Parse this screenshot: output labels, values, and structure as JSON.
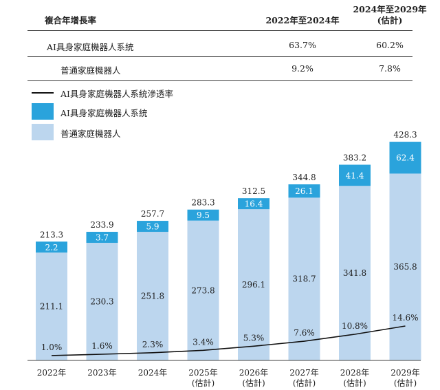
{
  "cagr_table": {
    "title": "複合年增長率",
    "col1": "2022年至2024年",
    "col2_line1": "2024年至2029年",
    "col2_line2": "(估計)",
    "rows": [
      {
        "label": "AI具身家庭機器人系統",
        "v1": "63.7%",
        "v2": "60.2%"
      },
      {
        "label": "普通家庭機器人",
        "v1": "9.2%",
        "v2": "7.8%"
      }
    ]
  },
  "legend": {
    "line": "AI具身家庭機器人系統滲透率",
    "top": "AI具身家庭機器人系統",
    "bottom": "普通家庭機器人"
  },
  "colors": {
    "top": "#2aa3dc",
    "bottom": "#bcd6ee",
    "line": "#111111",
    "axis": "#666666"
  },
  "chart_data": {
    "type": "bar",
    "stacked": true,
    "categories": [
      "2022年",
      "2023年",
      "2024年",
      "2025年(估計)",
      "2026年(估計)",
      "2027年(估計)",
      "2028年(估計)",
      "2029年(估計)"
    ],
    "x_labels": [
      [
        "2022年",
        ""
      ],
      [
        "2023年",
        ""
      ],
      [
        "2024年",
        ""
      ],
      [
        "2025年",
        "(估計)"
      ],
      [
        "2026年",
        "(估計)"
      ],
      [
        "2027年",
        "(估計)"
      ],
      [
        "2028年",
        "(估計)"
      ],
      [
        "2029年",
        "(估計)"
      ]
    ],
    "series": [
      {
        "name": "普通家庭機器人",
        "values": [
          211.1,
          230.3,
          251.8,
          273.8,
          296.1,
          318.7,
          341.8,
          365.8
        ]
      },
      {
        "name": "AI具身家庭機器人系統",
        "values": [
          2.2,
          3.7,
          5.9,
          9.5,
          16.4,
          26.1,
          41.4,
          62.4
        ]
      }
    ],
    "totals": [
      "213.3",
      "233.9",
      "257.7",
      "283.3",
      "312.5",
      "344.8",
      "383.2",
      "428.3"
    ],
    "bottom_labels": [
      "211.1",
      "230.3",
      "251.8",
      "273.8",
      "296.1",
      "318.7",
      "341.8",
      "365.8"
    ],
    "top_labels": [
      "2.2",
      "3.7",
      "5.9",
      "9.5",
      "16.4",
      "26.1",
      "41.4",
      "62.4"
    ],
    "line": {
      "name": "AI具身家庭機器人系統滲透率",
      "values": [
        1.0,
        1.6,
        2.3,
        3.4,
        5.3,
        7.6,
        10.8,
        14.6
      ],
      "labels": [
        "1.0%",
        "1.6%",
        "2.3%",
        "3.4%",
        "5.3%",
        "7.6%",
        "10.8%",
        "14.6%"
      ]
    },
    "ylim": [
      0,
      428.3
    ]
  }
}
